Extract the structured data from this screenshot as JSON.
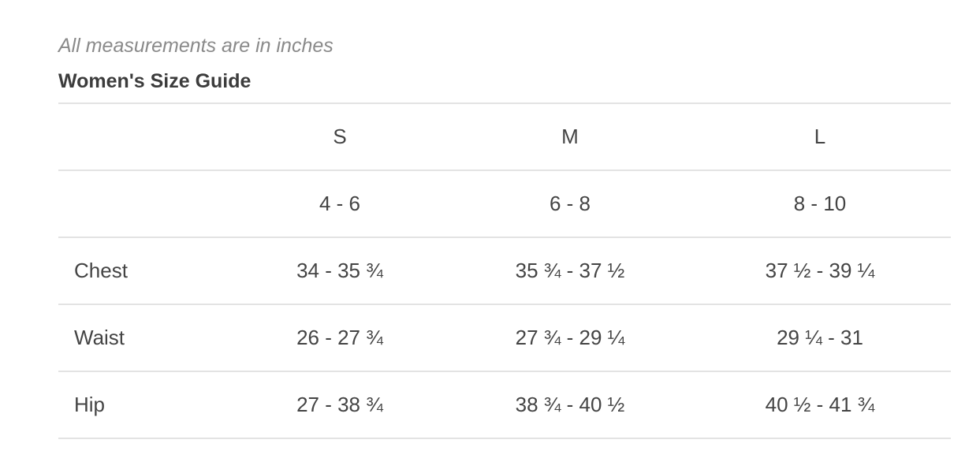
{
  "note": "All measurements are in inches",
  "title": "Women's Size Guide",
  "table": {
    "header": [
      "",
      "S",
      "M",
      "L"
    ],
    "rows": [
      [
        "",
        "4 - 6",
        "6 - 8",
        "8 - 10"
      ],
      [
        "Chest",
        "34 - 35 ¾",
        "35 ¾ - 37 ½",
        "37 ½ - 39 ¼"
      ],
      [
        "Waist",
        "26 - 27 ¾",
        "27 ¾ - 29 ¼",
        "29 ¼ - 31"
      ],
      [
        "Hip",
        "27 - 38 ¾",
        "38 ¾ - 40 ½",
        "40 ½ - 41 ¾"
      ]
    ]
  }
}
